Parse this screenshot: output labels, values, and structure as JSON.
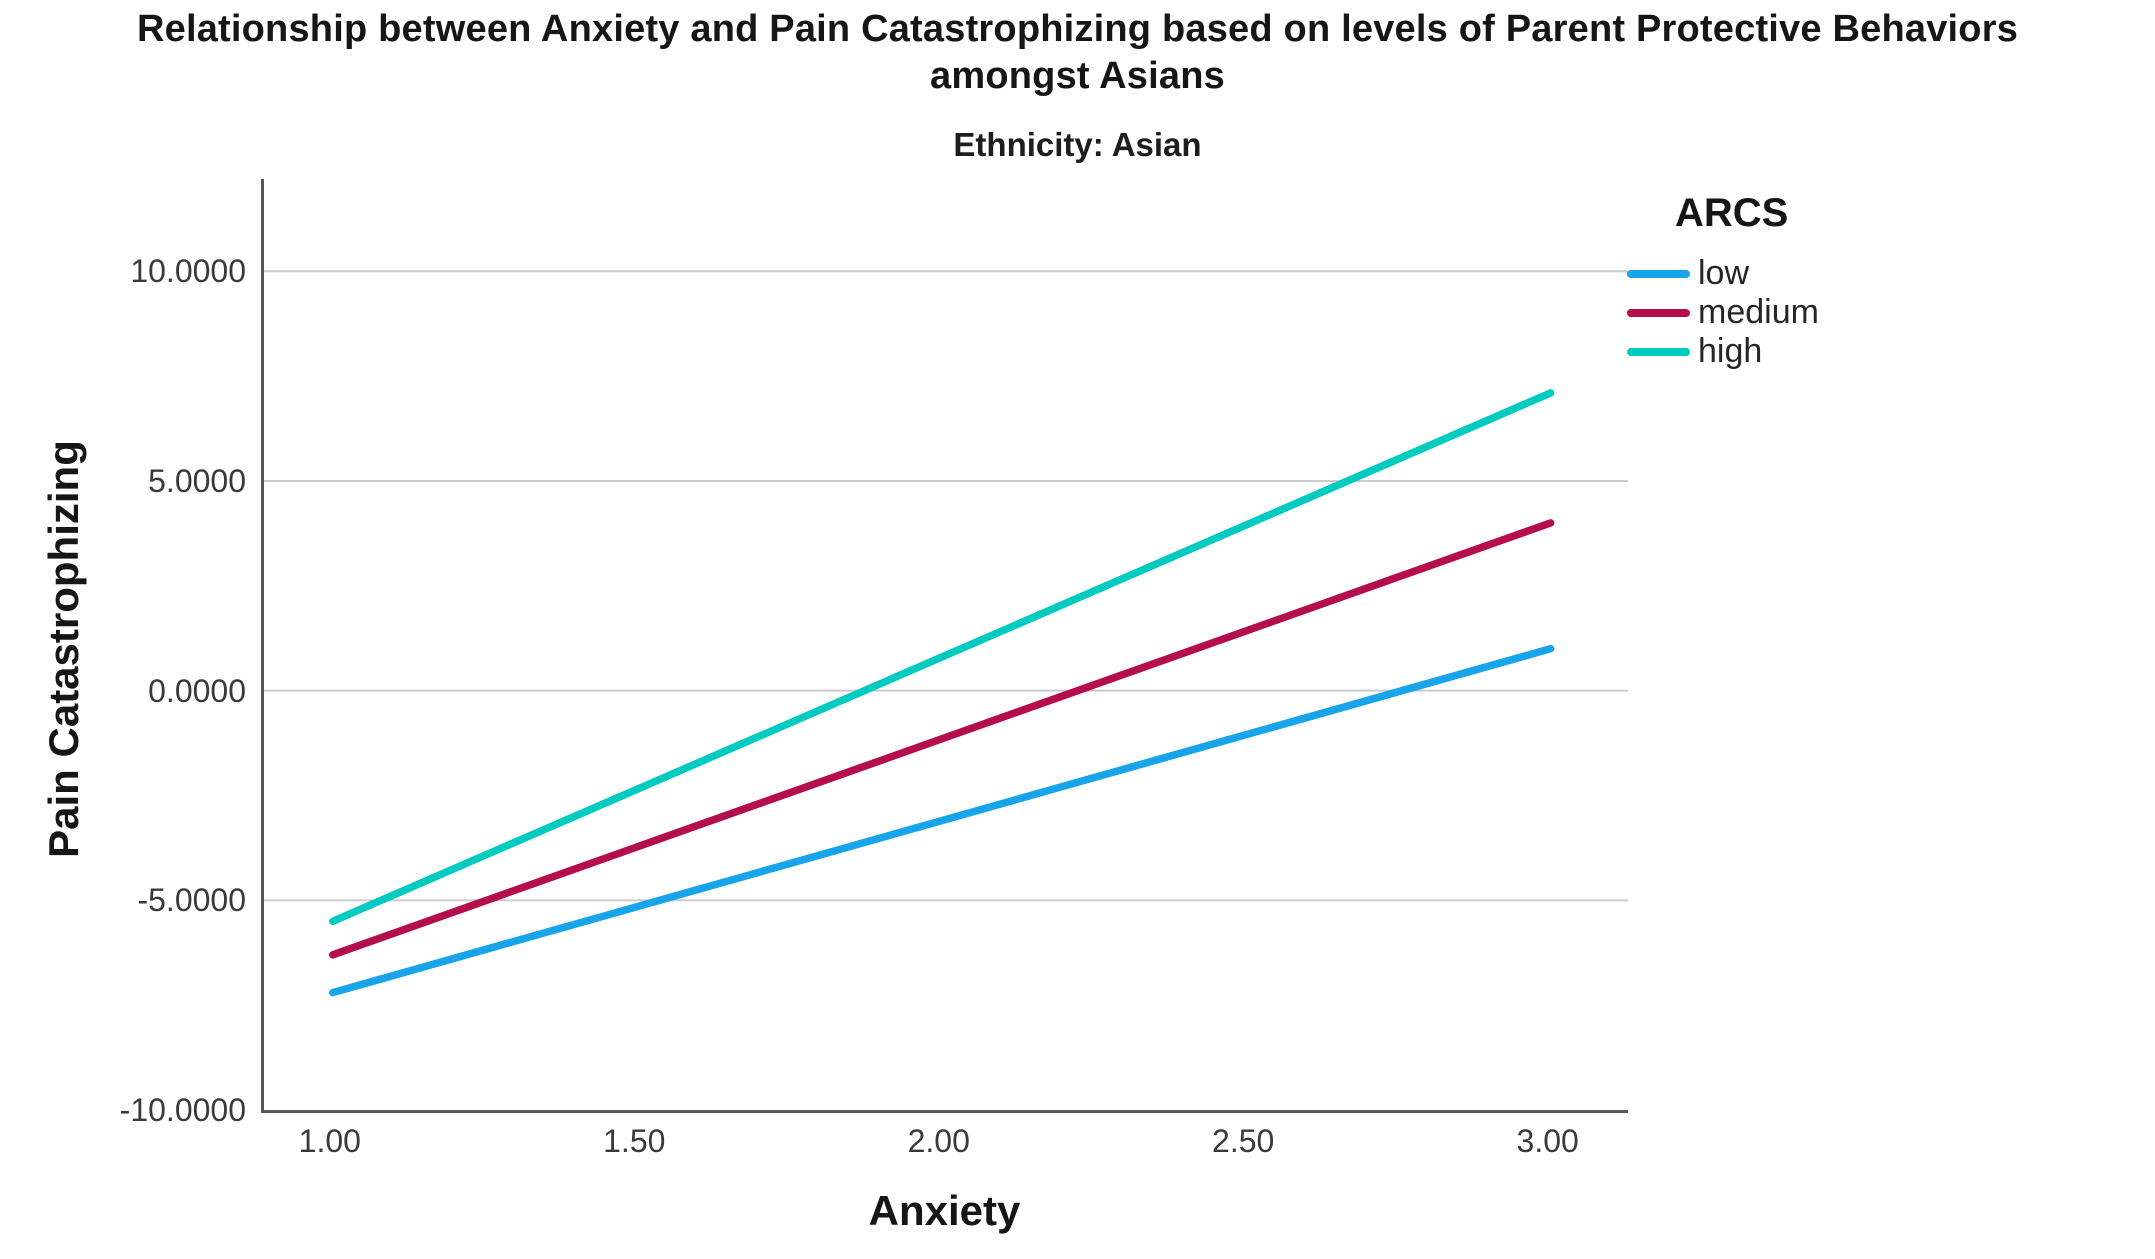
{
  "chart_data": {
    "type": "line",
    "title": "Relationship between Anxiety and Pain Catastrophizing based on levels of Parent Protective Behaviors amongst Asians",
    "title_line1": "Relationship between Anxiety and Pain Catastrophizing based on levels of Parent Protective Behaviors",
    "title_line2": "amongst Asians",
    "panel": "Ethnicity: Asian",
    "xlabel": "Anxiety",
    "ylabel": "Pain Catastrophizing",
    "xlim": [
      0.887,
      3.127
    ],
    "ylim": [
      -10.0,
      12.2
    ],
    "x_tick_values": [
      1.0,
      1.5,
      2.0,
      2.5,
      3.0
    ],
    "x_tick_labels": [
      "1.00",
      "1.50",
      "2.00",
      "2.50",
      "3.00"
    ],
    "y_tick_values": [
      10.0,
      5.0,
      0.0,
      -5.0,
      -10.0
    ],
    "y_tick_labels": [
      "10.0000",
      "5.0000",
      "0.0000",
      "-5.0000",
      "-10.0000"
    ],
    "grid": "horizontal",
    "legend_title": "ARCS",
    "legend_position": "top-right",
    "x": [
      1.0,
      3.0
    ],
    "series": [
      {
        "name": "low",
        "color": "#17A4EA",
        "values": [
          -7.2,
          1.0
        ]
      },
      {
        "name": "medium",
        "color": "#B50E4D",
        "values": [
          -6.3,
          4.0
        ]
      },
      {
        "name": "high",
        "color": "#00CBC0",
        "values": [
          -5.5,
          7.1
        ]
      }
    ],
    "line_width": 7.5,
    "colors": {
      "axis_frame": "#58585a",
      "gridline": "#cbcbcb",
      "tick_text": "#3a3a3a",
      "title_text": "#161616"
    }
  }
}
